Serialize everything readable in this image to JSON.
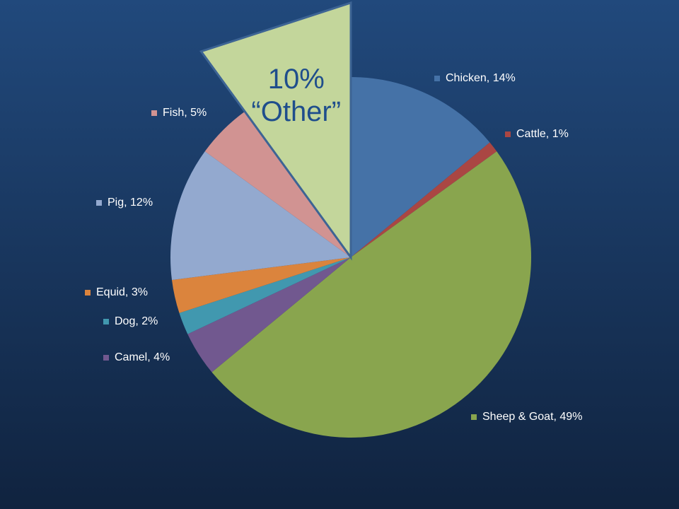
{
  "chart_data": {
    "type": "pie",
    "values": [
      14,
      1,
      49,
      4,
      2,
      3,
      12,
      5,
      10
    ],
    "value_labels": [
      "Chicken, 14%",
      "Cattle, 1%",
      "Sheep & Goat, 49%",
      "Camel, 4%",
      "Dog, 2%",
      "Equid, 3%",
      "Pig, 12%",
      "Fish, 5%",
      "10%"
    ],
    "colors": [
      "#4572a7",
      "#aa4643",
      "#89a54e",
      "#71588f",
      "#4198af",
      "#db843d",
      "#93a9cf",
      "#d19392",
      "#c3d69b"
    ],
    "exploded": 8,
    "annotation": "“Other”"
  }
}
